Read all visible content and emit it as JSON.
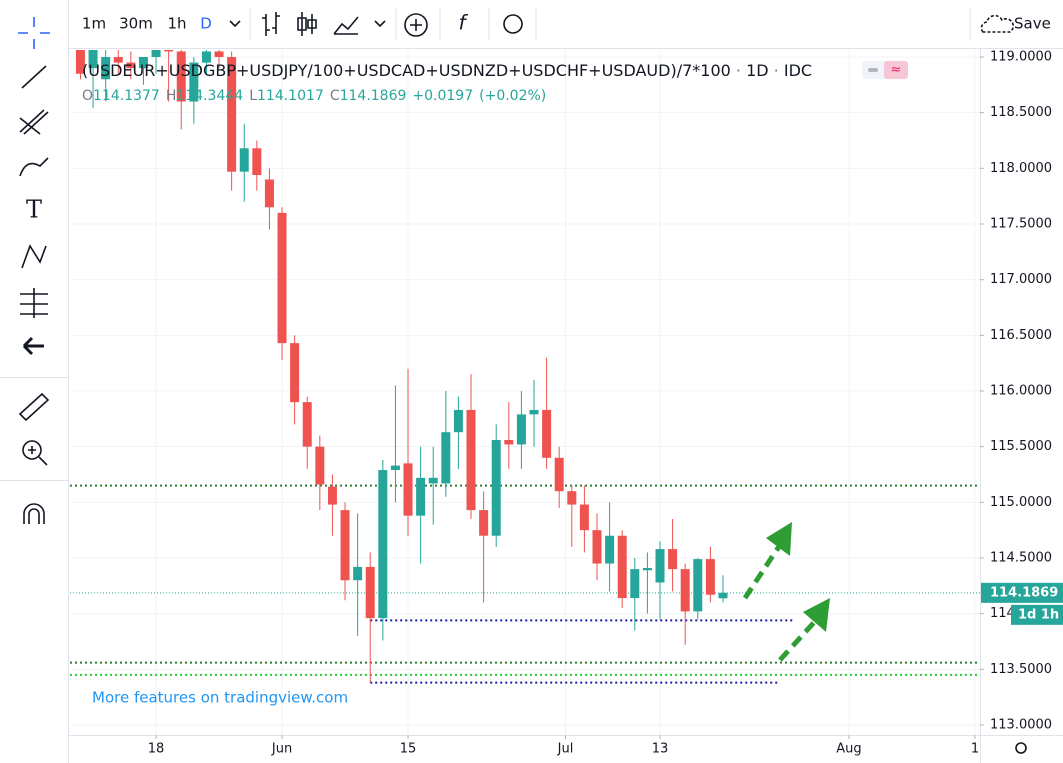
{
  "toolbar": {
    "intervals": [
      "1m",
      "30m",
      "1h",
      "D"
    ],
    "save": "Save"
  },
  "legend": {
    "symbol": "(USDEUR+USDGBP+USDJPY/100+USDCAD+USDNZD+USDCHF+USDAUD)/7*100",
    "interval": "1D",
    "source": "IDC",
    "open_label": "O",
    "open": 114.1377,
    "high_label": "H",
    "high": 114.3444,
    "low_label": "L",
    "low": 114.1017,
    "close_label": "C",
    "close": 114.1869,
    "change": "+0.0197",
    "change_pct": "(+0.02%)"
  },
  "watermark": "More features on tradingview.com",
  "chart_data": {
    "type": "candlestick",
    "open": [
      119.1,
      118.9,
      118.8,
      119.0,
      118.95,
      118.9,
      119.0,
      119.1,
      119.05,
      118.6,
      118.95,
      119.05,
      119.0,
      117.97,
      118.18,
      117.9,
      117.6,
      116.43,
      115.9,
      115.5,
      115.14,
      114.93,
      114.3,
      114.42,
      113.96,
      115.29,
      115.35,
      114.88,
      115.17,
      115.17,
      115.63,
      115.83,
      114.93,
      114.7,
      115.56,
      115.52,
      115.79,
      115.83,
      115.4,
      115.1,
      114.98,
      114.75,
      114.45,
      114.7,
      114.14,
      114.39,
      114.28,
      114.58,
      114.4,
      114.02,
      114.49,
      114.1377
    ],
    "high": [
      119.15,
      119.2,
      119.1,
      119.1,
      119.05,
      119.0,
      119.1,
      119.15,
      119.1,
      119.0,
      119.1,
      119.1,
      119.05,
      118.4,
      118.25,
      118.0,
      117.65,
      116.5,
      115.95,
      115.6,
      115.25,
      115.0,
      114.9,
      114.55,
      115.38,
      116.05,
      116.2,
      115.5,
      115.5,
      116.0,
      115.95,
      116.15,
      115.1,
      115.7,
      115.9,
      116.0,
      116.1,
      116.3,
      115.5,
      115.15,
      115.15,
      114.9,
      115.0,
      114.75,
      114.5,
      114.55,
      114.65,
      114.85,
      114.45,
      114.5,
      114.6,
      114.3444
    ],
    "low": [
      118.8,
      118.54,
      118.6,
      118.85,
      118.8,
      118.75,
      118.85,
      118.6,
      118.35,
      118.4,
      118.85,
      118.9,
      117.8,
      117.7,
      117.8,
      117.45,
      116.28,
      115.7,
      115.3,
      114.93,
      114.7,
      114.12,
      113.8,
      113.38,
      113.76,
      115.0,
      114.7,
      114.45,
      114.8,
      115.05,
      115.3,
      114.85,
      114.1,
      114.6,
      115.3,
      115.3,
      115.5,
      115.3,
      114.95,
      114.6,
      114.55,
      114.3,
      114.2,
      114.05,
      113.85,
      114.0,
      113.95,
      114.2,
      113.72,
      113.95,
      114.1,
      114.1017
    ],
    "close": [
      118.85,
      119.1,
      119.0,
      118.95,
      118.9,
      119.0,
      119.1,
      119.05,
      118.6,
      118.95,
      119.05,
      119.0,
      117.97,
      118.18,
      117.94,
      117.65,
      116.43,
      115.9,
      115.5,
      115.16,
      114.98,
      114.3,
      114.42,
      113.96,
      115.29,
      115.33,
      114.88,
      115.22,
      115.22,
      115.63,
      115.83,
      114.93,
      114.7,
      115.56,
      115.52,
      115.79,
      115.83,
      115.4,
      115.1,
      114.98,
      114.75,
      114.45,
      114.7,
      114.14,
      114.4,
      114.41,
      114.58,
      114.4,
      114.02,
      114.49,
      114.17,
      114.1869
    ],
    "up_color": "#26a69a",
    "down_color": "#ef5350",
    "ylim": [
      112.91,
      119.063
    ],
    "yticks": [
      {
        "value": 113.0,
        "label": "113.0000"
      },
      {
        "value": 113.5,
        "label": "113.5000"
      },
      {
        "value": 114.0,
        "label": "114.0000"
      },
      {
        "value": 114.5,
        "label": "114.5000"
      },
      {
        "value": 115.0,
        "label": "115.0000"
      },
      {
        "value": 115.5,
        "label": "115.5000"
      },
      {
        "value": 116.0,
        "label": "116.0000"
      },
      {
        "value": 116.5,
        "label": "116.5000"
      },
      {
        "value": 117.0,
        "label": "117.0000"
      },
      {
        "value": 117.5,
        "label": "117.5000"
      },
      {
        "value": 118.0,
        "label": "118.0000"
      },
      {
        "value": 118.5,
        "label": "118.5000"
      },
      {
        "value": 119.0,
        "label": "119.0000"
      }
    ],
    "xlim": [
      -0.83,
      71.4
    ],
    "xticks": [
      {
        "value": 6,
        "label": "18"
      },
      {
        "value": 16,
        "label": "Jun"
      },
      {
        "value": 26,
        "label": "15"
      },
      {
        "value": 38.5,
        "label": "Jul"
      },
      {
        "value": 46,
        "label": "13"
      },
      {
        "value": 61,
        "label": "Aug"
      },
      {
        "value": 71,
        "label": "1"
      }
    ],
    "grid": true,
    "levels": [
      {
        "value": 115.15,
        "color": "#2e7d32"
      },
      {
        "value": 113.56,
        "color": "#2e7d32"
      },
      {
        "value": 113.45,
        "color": "#22d02a"
      },
      {
        "value": 113.94,
        "color": "#1a1aa6"
      },
      {
        "value": 113.38,
        "color": "#1a1aa6"
      }
    ],
    "last_price": 114.1869,
    "last_color": "#26a69a",
    "countdown": "1d 1h"
  }
}
